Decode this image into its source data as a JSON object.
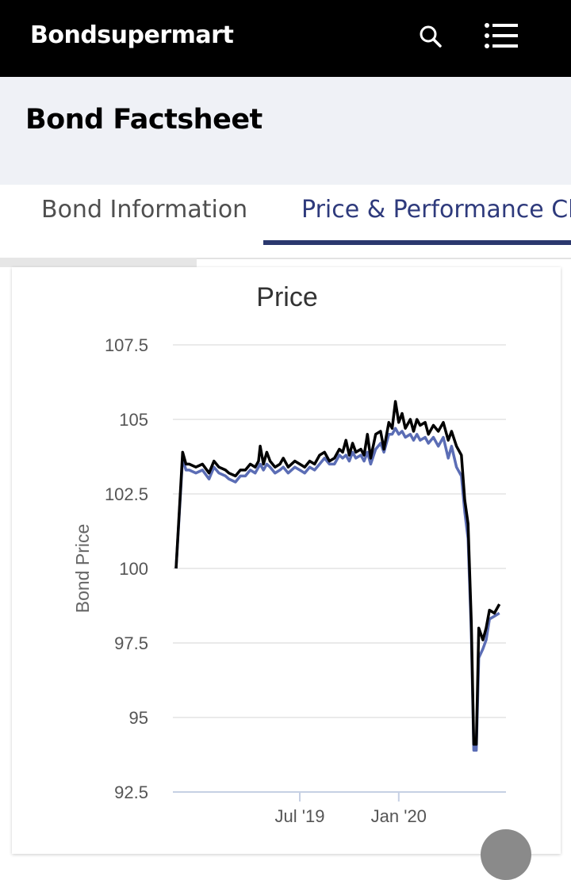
{
  "header": {
    "logo": "Bondsupermart",
    "icons": [
      "search-icon",
      "menu-icon"
    ],
    "background": "#000000"
  },
  "page": {
    "title": "Bond Factsheet"
  },
  "tabs": [
    {
      "label": "Bond Information",
      "active": false
    },
    {
      "label": "Price & Performance Cha",
      "active": true
    }
  ],
  "colors": {
    "accent": "#2b386e",
    "series_1": "#000000",
    "series_2": "#5b6db5"
  },
  "chart_data": {
    "type": "line",
    "title": "Price",
    "ylabel": "Bond Price",
    "xlabel": "",
    "ylim": [
      92.5,
      107.5
    ],
    "yticks": [
      "107.5",
      "105",
      "102.5",
      "100",
      "97.5",
      "95",
      "92.5"
    ],
    "xticks": [
      {
        "label": "Jul '19",
        "x": 7.5
      },
      {
        "label": "Jan '20",
        "x": 13.5
      }
    ],
    "grid": true,
    "legend": "none",
    "series": [
      {
        "color": "#000000",
        "points": [
          [
            0,
            100
          ],
          [
            0.4,
            103.9
          ],
          [
            0.6,
            103.5
          ],
          [
            0.8,
            103.5
          ],
          [
            1.2,
            103.4
          ],
          [
            1.6,
            103.5
          ],
          [
            2,
            103.2
          ],
          [
            2.3,
            103.6
          ],
          [
            2.6,
            103.4
          ],
          [
            3,
            103.3
          ],
          [
            3.2,
            103.2
          ],
          [
            3.6,
            103.1
          ],
          [
            3.9,
            103.3
          ],
          [
            4.2,
            103.3
          ],
          [
            4.5,
            103.5
          ],
          [
            4.8,
            103.4
          ],
          [
            5,
            103.6
          ],
          [
            5.1,
            104.1
          ],
          [
            5.3,
            103.5
          ],
          [
            5.5,
            103.9
          ],
          [
            5.7,
            103.6
          ],
          [
            6,
            103.4
          ],
          [
            6.3,
            103.5
          ],
          [
            6.5,
            103.7
          ],
          [
            6.8,
            103.4
          ],
          [
            7.2,
            103.6
          ],
          [
            7.5,
            103.5
          ],
          [
            7.8,
            103.4
          ],
          [
            8.1,
            103.6
          ],
          [
            8.4,
            103.5
          ],
          [
            8.7,
            103.8
          ],
          [
            9,
            103.9
          ],
          [
            9.3,
            103.6
          ],
          [
            9.6,
            103.7
          ],
          [
            9.9,
            104.0
          ],
          [
            10.1,
            103.9
          ],
          [
            10.3,
            104.3
          ],
          [
            10.5,
            103.8
          ],
          [
            10.7,
            104.2
          ],
          [
            10.9,
            103.9
          ],
          [
            11.2,
            104.0
          ],
          [
            11.4,
            103.8
          ],
          [
            11.6,
            104.5
          ],
          [
            11.8,
            103.7
          ],
          [
            12.1,
            104.5
          ],
          [
            12.4,
            104.6
          ],
          [
            12.6,
            104.0
          ],
          [
            12.9,
            104.9
          ],
          [
            13.1,
            104.7
          ],
          [
            13.3,
            105.6
          ],
          [
            13.5,
            104.9
          ],
          [
            13.7,
            105.2
          ],
          [
            13.9,
            104.7
          ],
          [
            14.2,
            105.0
          ],
          [
            14.4,
            104.6
          ],
          [
            14.6,
            105.0
          ],
          [
            14.8,
            104.8
          ],
          [
            15.1,
            104.9
          ],
          [
            15.3,
            104.5
          ],
          [
            15.6,
            104.8
          ],
          [
            15.9,
            104.6
          ],
          [
            16.2,
            104.9
          ],
          [
            16.5,
            104.3
          ],
          [
            16.7,
            104.6
          ],
          [
            17.0,
            104.1
          ],
          [
            17.3,
            103.8
          ],
          [
            17.5,
            102.3
          ],
          [
            17.7,
            101.5
          ],
          [
            17.9,
            98.2
          ],
          [
            18.05,
            94.1
          ],
          [
            18.2,
            94.1
          ],
          [
            18.35,
            98.0
          ],
          [
            18.6,
            97.6
          ],
          [
            18.8,
            98.0
          ],
          [
            19.0,
            98.6
          ],
          [
            19.3,
            98.5
          ],
          [
            19.6,
            98.8
          ]
        ]
      },
      {
        "color": "#5b6db5",
        "points": [
          [
            0,
            100
          ],
          [
            0.4,
            103.7
          ],
          [
            0.6,
            103.3
          ],
          [
            0.8,
            103.3
          ],
          [
            1.2,
            103.2
          ],
          [
            1.6,
            103.3
          ],
          [
            2,
            103.0
          ],
          [
            2.3,
            103.4
          ],
          [
            2.6,
            103.2
          ],
          [
            3,
            103.1
          ],
          [
            3.2,
            103.0
          ],
          [
            3.6,
            102.9
          ],
          [
            3.9,
            103.1
          ],
          [
            4.2,
            103.1
          ],
          [
            4.5,
            103.3
          ],
          [
            4.8,
            103.2
          ],
          [
            5,
            103.4
          ],
          [
            5.1,
            103.5
          ],
          [
            5.3,
            103.3
          ],
          [
            5.5,
            103.5
          ],
          [
            5.7,
            103.4
          ],
          [
            6,
            103.2
          ],
          [
            6.3,
            103.3
          ],
          [
            6.5,
            103.4
          ],
          [
            6.8,
            103.2
          ],
          [
            7.2,
            103.4
          ],
          [
            7.5,
            103.3
          ],
          [
            7.8,
            103.2
          ],
          [
            8.1,
            103.4
          ],
          [
            8.4,
            103.3
          ],
          [
            8.7,
            103.5
          ],
          [
            9,
            103.7
          ],
          [
            9.3,
            103.5
          ],
          [
            9.6,
            103.5
          ],
          [
            9.9,
            103.8
          ],
          [
            10.1,
            103.7
          ],
          [
            10.3,
            103.8
          ],
          [
            10.5,
            103.6
          ],
          [
            10.7,
            103.9
          ],
          [
            10.9,
            103.7
          ],
          [
            11.2,
            103.8
          ],
          [
            11.4,
            103.6
          ],
          [
            11.6,
            103.9
          ],
          [
            11.8,
            103.5
          ],
          [
            12.1,
            104.0
          ],
          [
            12.4,
            104.2
          ],
          [
            12.6,
            103.9
          ],
          [
            12.9,
            104.5
          ],
          [
            13.1,
            104.5
          ],
          [
            13.3,
            104.7
          ],
          [
            13.5,
            104.5
          ],
          [
            13.7,
            104.6
          ],
          [
            13.9,
            104.4
          ],
          [
            14.2,
            104.5
          ],
          [
            14.4,
            104.3
          ],
          [
            14.6,
            104.5
          ],
          [
            14.8,
            104.3
          ],
          [
            15.1,
            104.4
          ],
          [
            15.3,
            104.2
          ],
          [
            15.6,
            104.4
          ],
          [
            15.9,
            104.1
          ],
          [
            16.2,
            104.4
          ],
          [
            16.5,
            103.7
          ],
          [
            16.7,
            104.1
          ],
          [
            17.0,
            103.4
          ],
          [
            17.3,
            103.1
          ],
          [
            17.5,
            101.9
          ],
          [
            17.7,
            101.0
          ],
          [
            17.9,
            97.8
          ],
          [
            18.05,
            93.9
          ],
          [
            18.2,
            93.9
          ],
          [
            18.35,
            97.0
          ],
          [
            18.6,
            97.3
          ],
          [
            18.8,
            97.6
          ],
          [
            19.0,
            98.3
          ],
          [
            19.3,
            98.4
          ],
          [
            19.6,
            98.5
          ]
        ]
      }
    ]
  }
}
